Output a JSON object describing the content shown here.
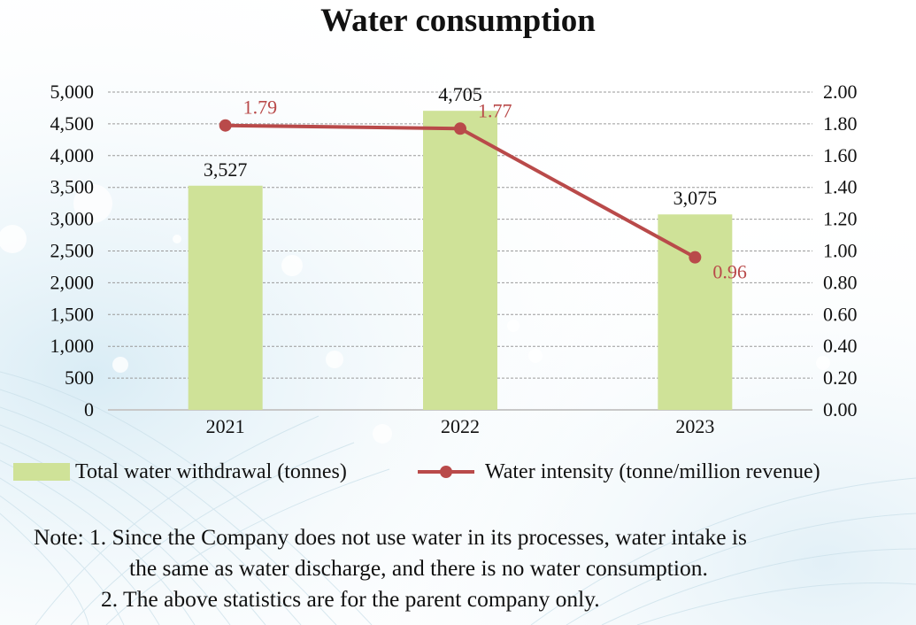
{
  "title": "Water consumption",
  "chart_data": {
    "type": "bar+line",
    "title": "Water consumption",
    "categories": [
      "2021",
      "2022",
      "2023"
    ],
    "series": [
      {
        "name": "Total water withdrawal (tonnes)",
        "type": "bar",
        "axis": "left",
        "values": [
          3527,
          4705,
          3075
        ],
        "labels": [
          "3,527",
          "4,705",
          "3,075"
        ],
        "color": "#cfe298"
      },
      {
        "name": "Water intensity (tonne/million revenue)",
        "type": "line",
        "axis": "right",
        "values": [
          1.79,
          1.77,
          0.96
        ],
        "labels": [
          "1.79",
          "1.77",
          "0.96"
        ],
        "color": "#b94a4a"
      }
    ],
    "y_left": {
      "ylim": [
        0,
        5000
      ],
      "ticks": [
        "0",
        "500",
        "1,000",
        "1,500",
        "2,000",
        "2,500",
        "3,000",
        "3,500",
        "4,000",
        "4,500",
        "5,000"
      ]
    },
    "y_right": {
      "ylim": [
        0,
        2
      ],
      "ticks": [
        "0.00",
        "0.20",
        "0.40",
        "0.60",
        "0.80",
        "1.00",
        "1.20",
        "1.40",
        "1.60",
        "1.80",
        "2.00"
      ]
    },
    "grid": true,
    "legend": "bottom"
  },
  "legend": {
    "bar": "Total water withdrawal (tonnes)",
    "line": "Water intensity (tonne/million revenue)"
  },
  "note": {
    "line1": "Note: 1. Since the Company does not use water in its processes, water intake is",
    "line1b": "the same as water discharge, and there is no water consumption.",
    "line2": "2. The above statistics are for the parent company only."
  }
}
